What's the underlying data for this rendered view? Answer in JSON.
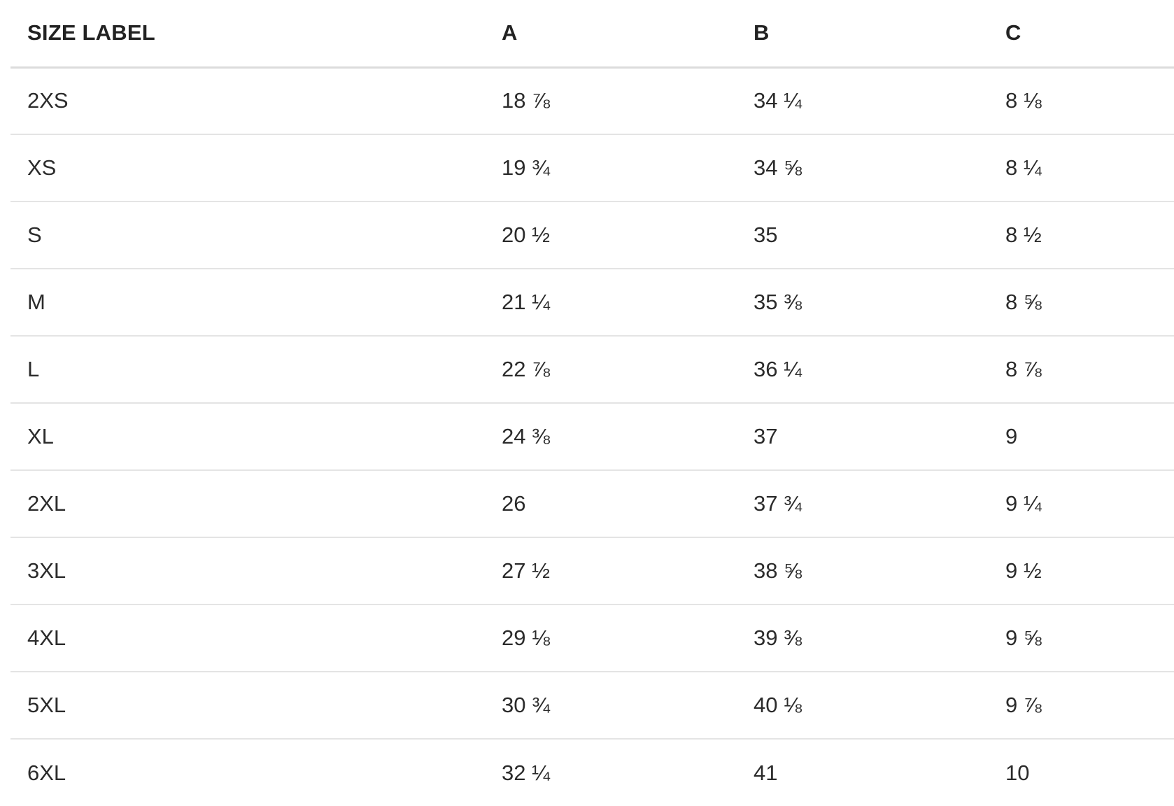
{
  "table": {
    "headers": [
      "SIZE LABEL",
      "A",
      "B",
      "C"
    ],
    "rows": [
      [
        "2XS",
        "18 ⅞",
        "34 ¼",
        "8 ⅛"
      ],
      [
        "XS",
        "19 ¾",
        "34 ⅝",
        "8 ¼"
      ],
      [
        "S",
        "20 ½",
        "35",
        "8 ½"
      ],
      [
        "M",
        "21 ¼",
        "35 ⅜",
        "8 ⅝"
      ],
      [
        "L",
        "22 ⅞",
        "36 ¼",
        "8 ⅞"
      ],
      [
        "XL",
        "24 ⅜",
        "37",
        "9"
      ],
      [
        "2XL",
        "26",
        "37 ¾",
        "9 ¼"
      ],
      [
        "3XL",
        "27 ½",
        "38 ⅝",
        "9 ½"
      ],
      [
        "4XL",
        "29 ⅛",
        "39 ⅜",
        "9 ⅝"
      ],
      [
        "5XL",
        "30 ¾",
        "40 ⅛",
        "9 ⅞"
      ],
      [
        "6XL",
        "32 ¼",
        "41",
        "10"
      ]
    ]
  }
}
